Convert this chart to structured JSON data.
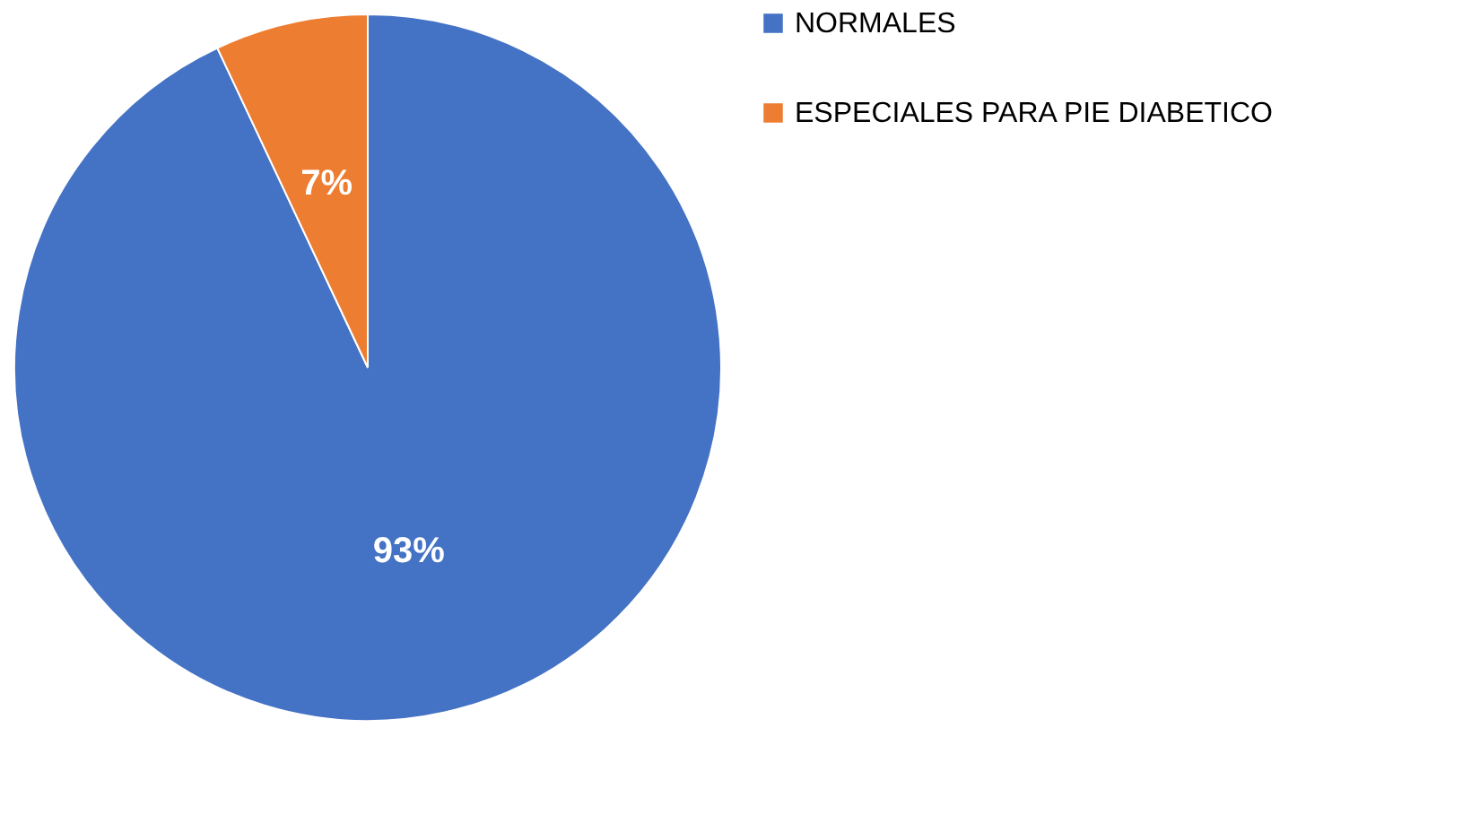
{
  "chart_data": {
    "type": "pie",
    "categories": [
      "NORMALES",
      "ESPECIALES PARA PIE DIABETICO"
    ],
    "values": [
      93,
      7
    ],
    "colors": [
      "#4472c4",
      "#ed7d31"
    ],
    "value_labels": [
      "93%",
      "7%"
    ],
    "legend": "right"
  }
}
